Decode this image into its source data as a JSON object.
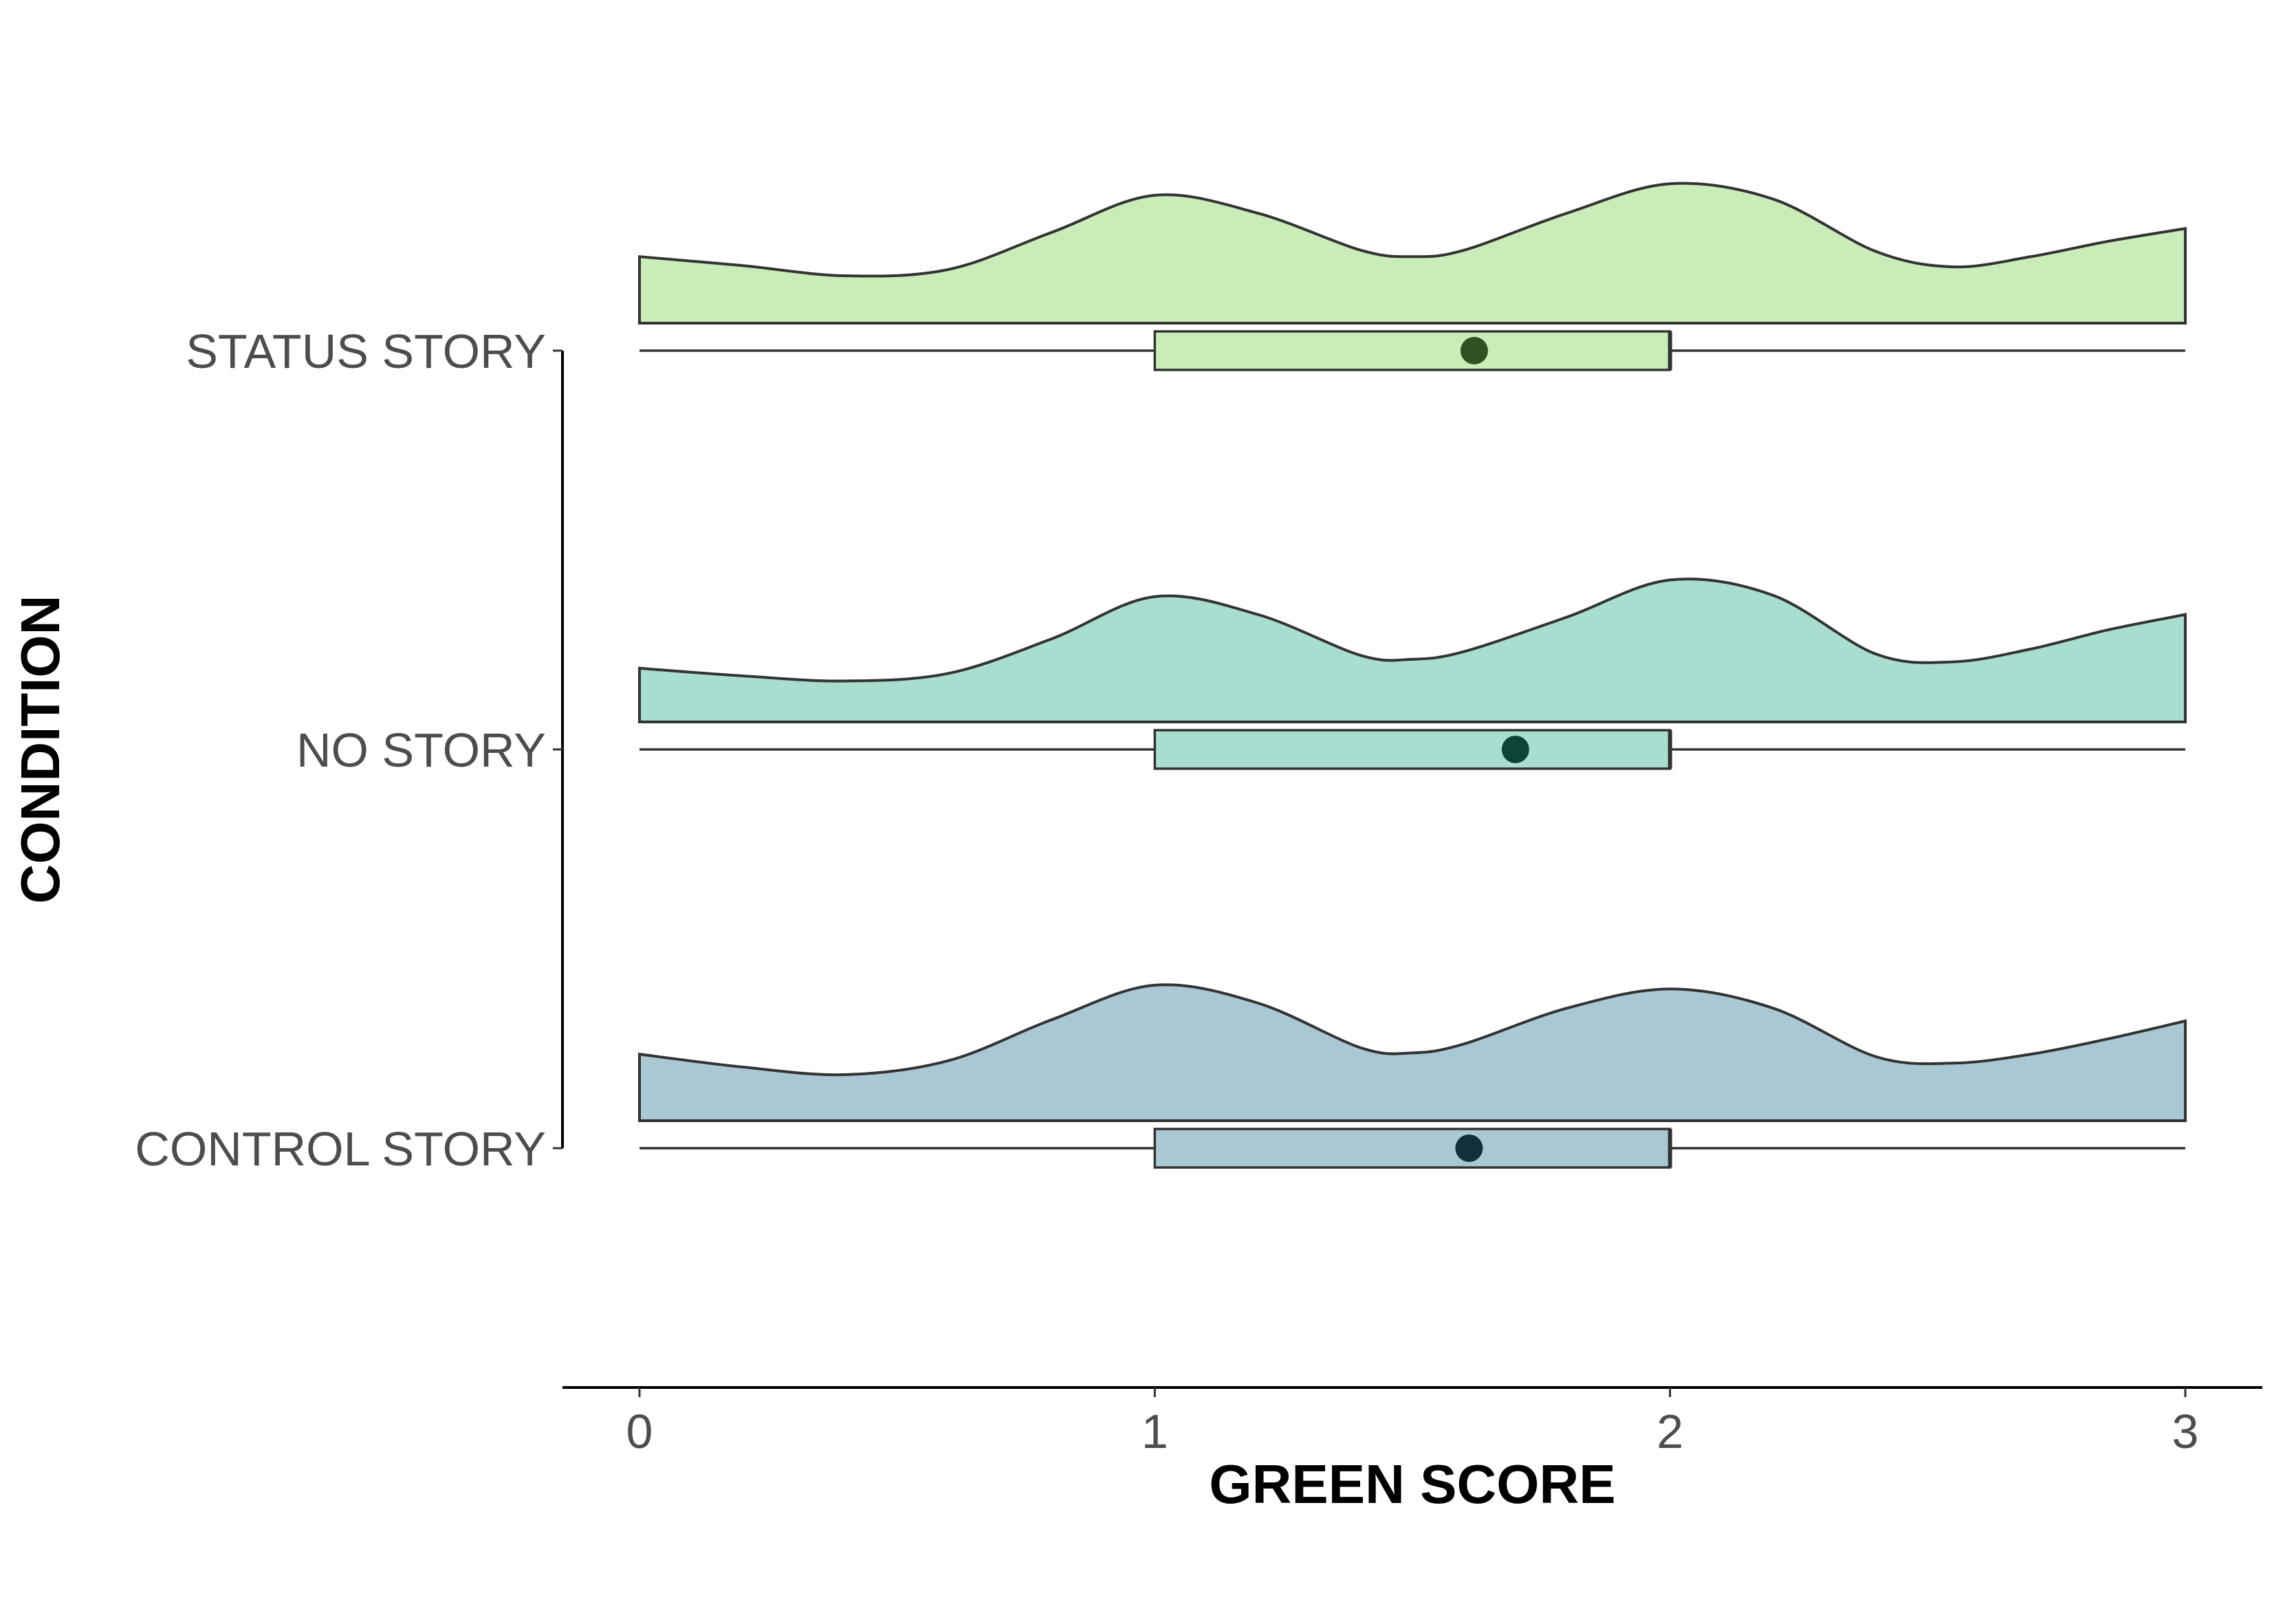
{
  "chart_data": {
    "type": "raincloud",
    "xlabel": "GREEN SCORE",
    "ylabel": "CONDITION",
    "xlim": [
      0,
      3
    ],
    "x_ticks": [
      0,
      1,
      2,
      3
    ],
    "x_tick_labels": [
      "0",
      "1",
      "2",
      "3"
    ],
    "grid": false,
    "legend": "none",
    "categories": [
      "STATUS STORY",
      "NO STORY",
      "CONTROL STORY"
    ],
    "series": [
      {
        "category": "STATUS STORY",
        "fill": "#c9ecb9",
        "mean_color": "#2f5220",
        "box": {
          "min": 0,
          "q1": 1,
          "median": 2,
          "q3": 2,
          "max": 3,
          "mean": 1.62
        },
        "density": {
          "x": [
            0,
            0.2,
            0.4,
            0.6,
            0.8,
            1.0,
            1.2,
            1.4,
            1.5,
            1.6,
            1.8,
            2.0,
            2.2,
            2.4,
            2.55,
            2.7,
            2.85,
            3.0
          ],
          "y": [
            0.52,
            0.45,
            0.37,
            0.42,
            0.71,
            1.0,
            0.86,
            0.57,
            0.52,
            0.57,
            0.86,
            1.09,
            0.97,
            0.56,
            0.44,
            0.52,
            0.64,
            0.74
          ]
        }
      },
      {
        "category": "NO STORY",
        "fill": "#a8ddd0",
        "mean_color": "#0f4335",
        "box": {
          "min": 0,
          "q1": 1,
          "median": 2,
          "q3": 2,
          "max": 3,
          "mean": 1.7
        },
        "density": {
          "x": [
            0,
            0.2,
            0.4,
            0.6,
            0.8,
            1.0,
            1.2,
            1.4,
            1.5,
            1.6,
            1.8,
            2.0,
            2.2,
            2.4,
            2.55,
            2.7,
            2.85,
            3.0
          ],
          "y": [
            0.42,
            0.36,
            0.32,
            0.38,
            0.65,
            0.98,
            0.84,
            0.52,
            0.49,
            0.55,
            0.82,
            1.11,
            0.99,
            0.53,
            0.47,
            0.57,
            0.72,
            0.84
          ]
        }
      },
      {
        "category": "CONTROL STORY",
        "fill": "#aac8d3",
        "mean_color": "#10313b",
        "box": {
          "min": 0,
          "q1": 1,
          "median": 2,
          "q3": 2,
          "max": 3,
          "mean": 1.61
        },
        "density": {
          "x": [
            0,
            0.2,
            0.4,
            0.6,
            0.8,
            1.0,
            1.2,
            1.4,
            1.5,
            1.6,
            1.8,
            2.0,
            2.2,
            2.4,
            2.55,
            2.7,
            2.85,
            3.0
          ],
          "y": [
            0.52,
            0.42,
            0.36,
            0.47,
            0.79,
            1.06,
            0.92,
            0.57,
            0.53,
            0.6,
            0.88,
            1.03,
            0.88,
            0.5,
            0.45,
            0.52,
            0.64,
            0.78
          ]
        }
      }
    ]
  }
}
